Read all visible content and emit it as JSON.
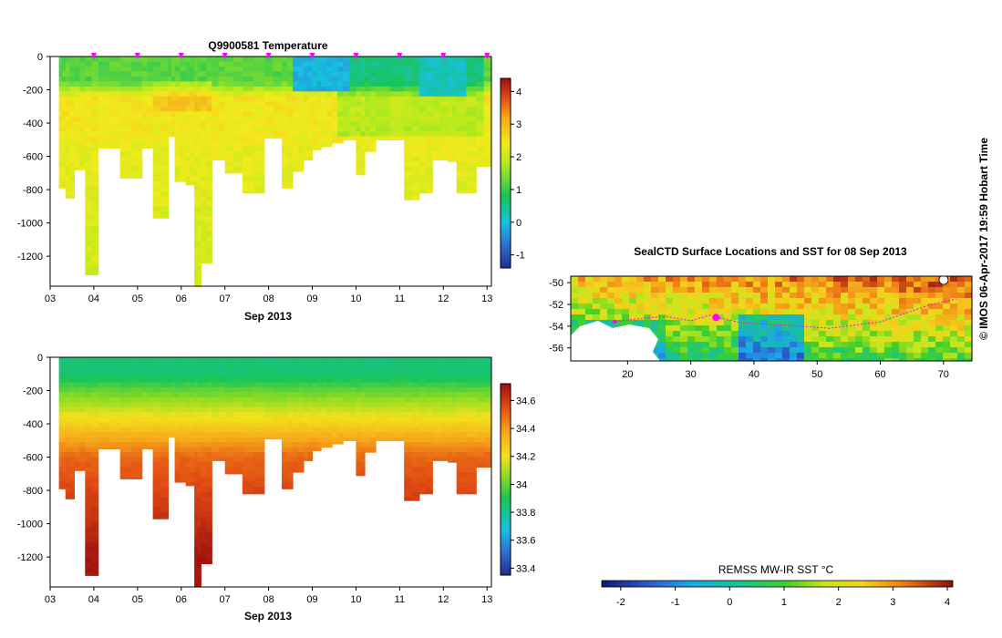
{
  "chart_data": [
    {
      "type": "heatmap",
      "title": "Q9900581  Temperature",
      "xlabel": "Sep 2013",
      "xticks": [
        "03",
        "04",
        "05",
        "06",
        "07",
        "08",
        "09",
        "10",
        "11",
        "12",
        "13"
      ],
      "xlim": [
        3,
        13.1
      ],
      "ylim": [
        -1380,
        0
      ],
      "yticks": [
        0,
        -200,
        -400,
        -600,
        -800,
        -1000,
        -1200
      ],
      "colorbar": {
        "ticks": [
          4,
          3,
          2,
          1,
          0,
          -1
        ],
        "range": [
          -1.4,
          4.4
        ]
      },
      "profile_markers_days": [
        4,
        5,
        6,
        7,
        8,
        9,
        10,
        11,
        12,
        13
      ],
      "profiles": [
        {
          "start": 3.2,
          "end": 3.35,
          "depth": 790
        },
        {
          "start": 3.35,
          "end": 3.55,
          "depth": 850
        },
        {
          "start": 3.55,
          "end": 3.8,
          "depth": 680
        },
        {
          "start": 3.8,
          "end": 4.1,
          "depth": 1310
        },
        {
          "start": 4.1,
          "end": 4.6,
          "depth": 550
        },
        {
          "start": 4.6,
          "end": 5.1,
          "depth": 730
        },
        {
          "start": 5.1,
          "end": 5.35,
          "depth": 550
        },
        {
          "start": 5.35,
          "end": 5.7,
          "depth": 970
        },
        {
          "start": 5.7,
          "end": 5.85,
          "depth": 480
        },
        {
          "start": 5.85,
          "end": 6.1,
          "depth": 750
        },
        {
          "start": 6.1,
          "end": 6.3,
          "depth": 770
        },
        {
          "start": 6.3,
          "end": 6.45,
          "depth": 1380
        },
        {
          "start": 6.45,
          "end": 6.7,
          "depth": 1240
        },
        {
          "start": 6.7,
          "end": 7.0,
          "depth": 620
        },
        {
          "start": 7.0,
          "end": 7.4,
          "depth": 700
        },
        {
          "start": 7.4,
          "end": 7.9,
          "depth": 820
        },
        {
          "start": 7.9,
          "end": 8.3,
          "depth": 490
        },
        {
          "start": 8.3,
          "end": 8.55,
          "depth": 790
        },
        {
          "start": 8.55,
          "end": 8.8,
          "depth": 690
        },
        {
          "start": 8.8,
          "end": 9.0,
          "depth": 620
        },
        {
          "start": 9.0,
          "end": 9.2,
          "depth": 560
        },
        {
          "start": 9.2,
          "end": 9.45,
          "depth": 540
        },
        {
          "start": 9.45,
          "end": 9.7,
          "depth": 520
        },
        {
          "start": 9.7,
          "end": 10.0,
          "depth": 500
        },
        {
          "start": 10.0,
          "end": 10.2,
          "depth": 710
        },
        {
          "start": 10.2,
          "end": 10.45,
          "depth": 570
        },
        {
          "start": 10.45,
          "end": 11.1,
          "depth": 500
        },
        {
          "start": 11.1,
          "end": 11.45,
          "depth": 860
        },
        {
          "start": 11.45,
          "end": 11.75,
          "depth": 820
        },
        {
          "start": 11.75,
          "end": 12.1,
          "depth": 620
        },
        {
          "start": 12.1,
          "end": 12.3,
          "depth": 630
        },
        {
          "start": 12.3,
          "end": 12.75,
          "depth": 820
        },
        {
          "start": 12.75,
          "end": 13.1,
          "depth": 660
        }
      ]
    },
    {
      "type": "heatmap",
      "title": "",
      "xlabel": "Sep 2013",
      "xticks": [
        "03",
        "04",
        "05",
        "06",
        "07",
        "08",
        "09",
        "10",
        "11",
        "12",
        "13"
      ],
      "xlim": [
        3,
        13.1
      ],
      "ylim": [
        -1380,
        0
      ],
      "yticks": [
        0,
        -200,
        -400,
        -600,
        -800,
        -1000,
        -1200
      ],
      "colorbar": {
        "ticks": [
          34.6,
          34.4,
          34.2,
          34,
          33.8,
          33.6,
          33.4
        ],
        "range": [
          33.35,
          34.72
        ]
      }
    },
    {
      "type": "heatmap",
      "title": "SealCTD Surface Locations and SST for 08 Sep 2013",
      "xticks": [
        20,
        30,
        40,
        50,
        60,
        70
      ],
      "yticks": [
        -50,
        -52,
        -54,
        -56
      ],
      "xlim": [
        11,
        74.5
      ],
      "ylim": [
        -57.2,
        -49.4
      ],
      "colorbar": {
        "label": "REMSS MW-IR SST °C",
        "ticks": [
          -2,
          -1,
          0,
          1,
          2,
          3,
          4
        ],
        "range": [
          -2.35,
          4.1
        ]
      }
    }
  ],
  "credit": "© IMOS 06-Apr-2017 19:59 Hobart Time"
}
